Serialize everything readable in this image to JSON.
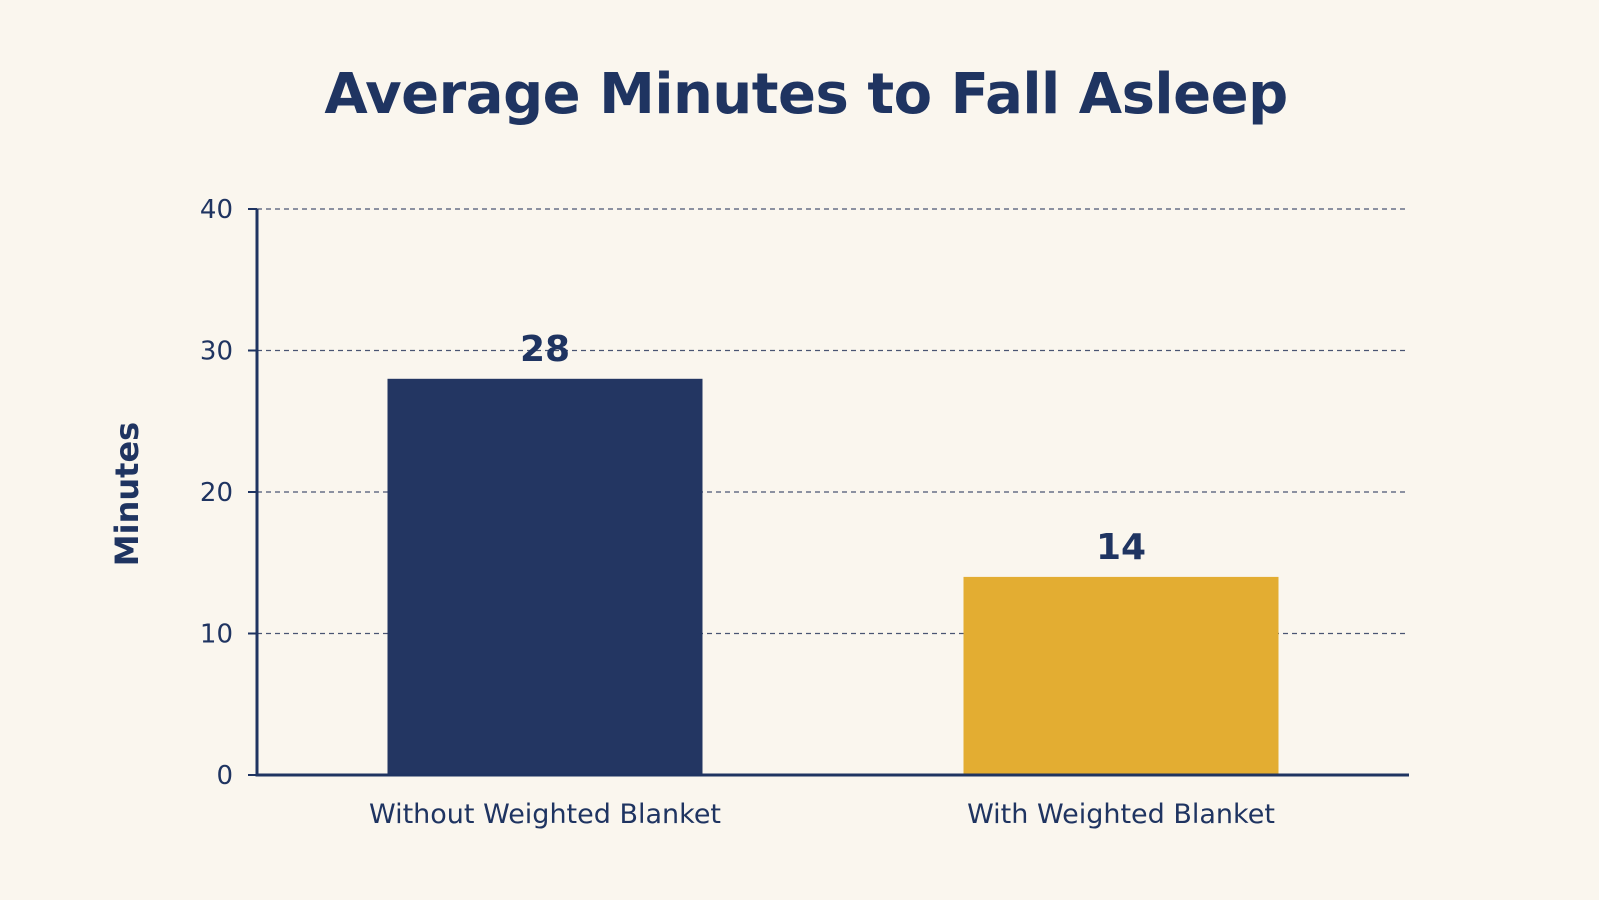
{
  "chart_data": {
    "type": "bar",
    "title": "Average Minutes to Fall Asleep",
    "xlabel": "",
    "ylabel": "Minutes",
    "ylim": [
      0,
      40
    ],
    "yticks": [
      0,
      10,
      20,
      30,
      40
    ],
    "grid": true,
    "categories": [
      "Without Weighted Blanket",
      "With Weighted Blanket"
    ],
    "values": [
      28,
      14
    ],
    "data_labels": [
      "28",
      "14"
    ],
    "colors": [
      "#233662",
      "#e3ad32"
    ]
  }
}
